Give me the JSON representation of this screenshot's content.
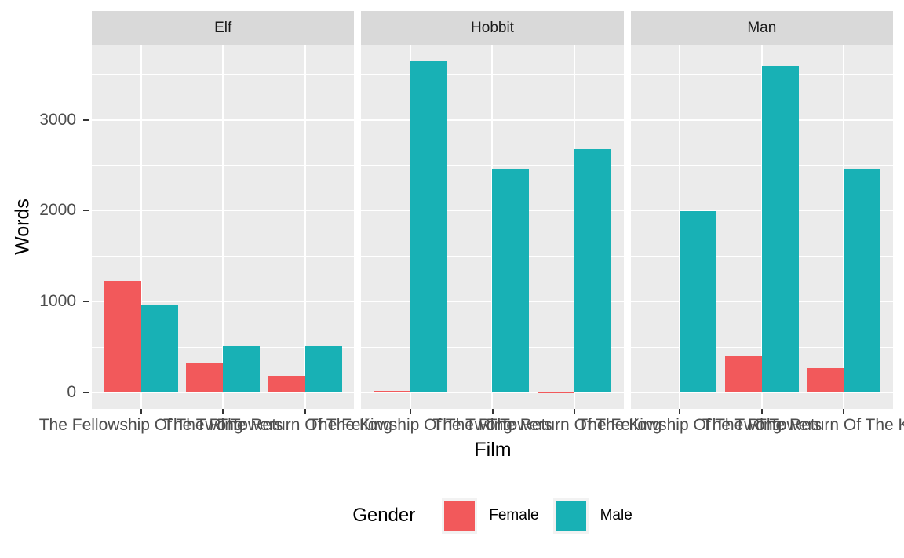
{
  "chart_data": {
    "type": "bar",
    "title": "",
    "xlabel": "Film",
    "ylabel": "Words",
    "facets": [
      "Elf",
      "Hobbit",
      "Man"
    ],
    "categories": [
      "The Fellowship Of The Ring",
      "The Two Towers",
      "The Return Of The King"
    ],
    "series": [
      {
        "name": "Female",
        "color": "#F2595B",
        "values": [
          [
            1229,
            331,
            183
          ],
          [
            14,
            0,
            2
          ],
          [
            0,
            401,
            268
          ]
        ]
      },
      {
        "name": "Male",
        "color": "#18B1B5",
        "values": [
          [
            971,
            513,
            510
          ],
          [
            3644,
            2463,
            2673
          ],
          [
            1995,
            3589,
            2459
          ]
        ]
      }
    ],
    "y_ticks": [
      0,
      1000,
      2000,
      3000
    ],
    "y_minor_gridlines": [
      500,
      1500,
      2500,
      3500
    ],
    "ylim": [
      -182,
      3826
    ],
    "grid": "major-and-minor",
    "legend": {
      "title": "Gender",
      "position": "bottom"
    },
    "theme": {
      "panel_bg": "#EBEBEB",
      "strip_bg": "#D9D9D9",
      "grid_color": "#FFFFFF",
      "axis_text_color": "#4D4D4D",
      "tick_mark_color": "#333333",
      "title_color": "#000000"
    }
  }
}
